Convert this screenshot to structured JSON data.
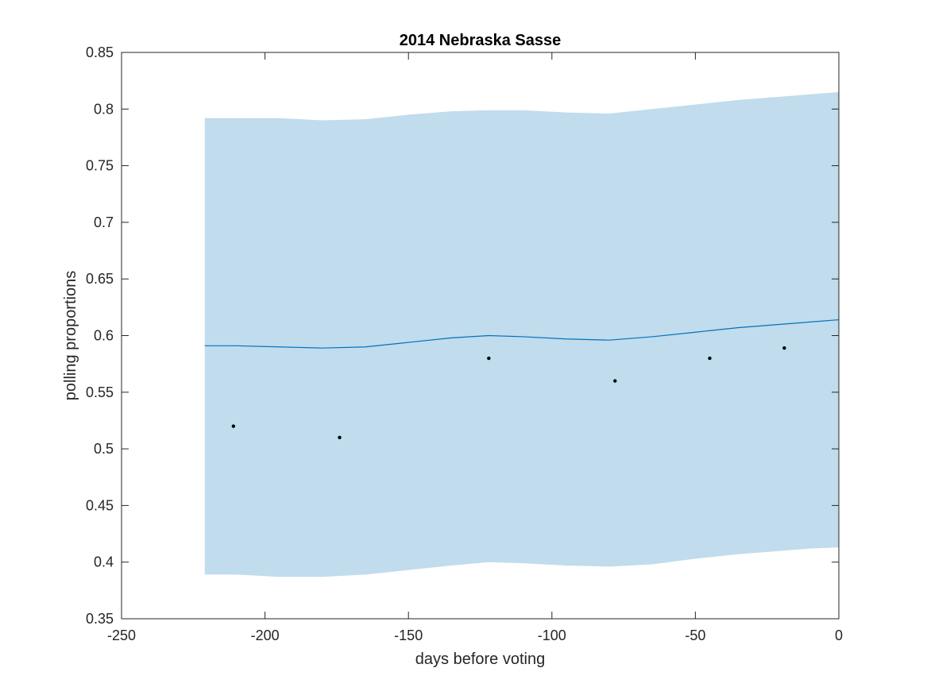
{
  "chart_data": {
    "type": "line",
    "title": "2014 Nebraska Sasse",
    "xlabel": "days before voting",
    "ylabel": "polling proportions",
    "xlim": [
      -250,
      0
    ],
    "ylim": [
      0.35,
      0.85
    ],
    "xticks": [
      -250,
      -200,
      -150,
      -100,
      -50,
      0
    ],
    "xtick_labels": [
      "-250",
      "-200",
      "-150",
      "-100",
      "-50",
      "0"
    ],
    "yticks": [
      0.35,
      0.4,
      0.45,
      0.5,
      0.55,
      0.6,
      0.65,
      0.7,
      0.75,
      0.8,
      0.85
    ],
    "ytick_labels": [
      "0.35",
      "0.4",
      "0.45",
      "0.5",
      "0.55",
      "0.6",
      "0.65",
      "0.7",
      "0.75",
      "0.8",
      "0.85"
    ],
    "grid": false,
    "colors": {
      "band": "#c1dcec",
      "line": "#0072bd",
      "points": "#000000",
      "axes": "#262626"
    },
    "band": {
      "x": [
        -221,
        -210,
        -195,
        -180,
        -165,
        -150,
        -135,
        -122,
        -110,
        -95,
        -80,
        -65,
        -50,
        -35,
        -20,
        -10,
        0
      ],
      "upper": [
        0.792,
        0.792,
        0.792,
        0.79,
        0.791,
        0.795,
        0.798,
        0.799,
        0.799,
        0.797,
        0.796,
        0.8,
        0.804,
        0.808,
        0.811,
        0.813,
        0.815
      ],
      "lower": [
        0.389,
        0.389,
        0.387,
        0.387,
        0.389,
        0.393,
        0.397,
        0.4,
        0.399,
        0.397,
        0.396,
        0.398,
        0.403,
        0.407,
        0.41,
        0.412,
        0.413
      ]
    },
    "series": [
      {
        "type": "line",
        "x": [
          -221,
          -210,
          -195,
          -180,
          -165,
          -150,
          -135,
          -122,
          -110,
          -95,
          -80,
          -65,
          -50,
          -35,
          -20,
          -10,
          0
        ],
        "y": [
          0.591,
          0.591,
          0.59,
          0.589,
          0.59,
          0.594,
          0.598,
          0.6,
          0.599,
          0.597,
          0.596,
          0.599,
          0.603,
          0.607,
          0.61,
          0.612,
          0.614
        ]
      },
      {
        "type": "scatter",
        "x": [
          -211,
          -174,
          -122,
          -78,
          -45,
          -19
        ],
        "y": [
          0.52,
          0.51,
          0.58,
          0.56,
          0.58,
          0.589
        ]
      }
    ]
  }
}
